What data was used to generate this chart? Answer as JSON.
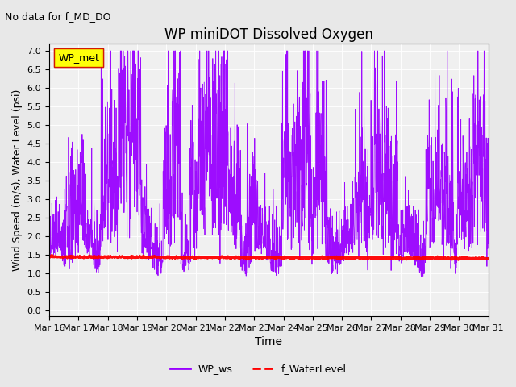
{
  "title": "WP miniDOT Dissolved Oxygen",
  "subtitle": "No data for f_MD_DO",
  "xlabel": "Time",
  "ylabel": "Wind Speed (m/s), Water Level (psi)",
  "ylim": [
    -0.15,
    7.2
  ],
  "yticks": [
    0.0,
    0.5,
    1.0,
    1.5,
    2.0,
    2.5,
    3.0,
    3.5,
    4.0,
    4.5,
    5.0,
    5.5,
    6.0,
    6.5,
    7.0
  ],
  "xtick_labels": [
    "Mar 16",
    "Mar 17",
    "Mar 18",
    "Mar 19",
    "Mar 20",
    "Mar 21",
    "Mar 22",
    "Mar 23",
    "Mar 24",
    "Mar 25",
    "Mar 26",
    "Mar 27",
    "Mar 28",
    "Mar 29",
    "Mar 30",
    "Mar 31"
  ],
  "line_wp_ws_color": "#9900ff",
  "line_water_level_color": "#ff0000",
  "legend_box_color": "#ffff00",
  "legend_box_edge": "#cc0000",
  "background_color": "#e8e8e8",
  "plot_bg_color": "#f0f0f0",
  "legend1_label": "WP_met",
  "legend2_label": "WP_ws",
  "legend3_label": "f_WaterLevel",
  "water_level_value": 1.45,
  "water_level_slope": -0.003
}
